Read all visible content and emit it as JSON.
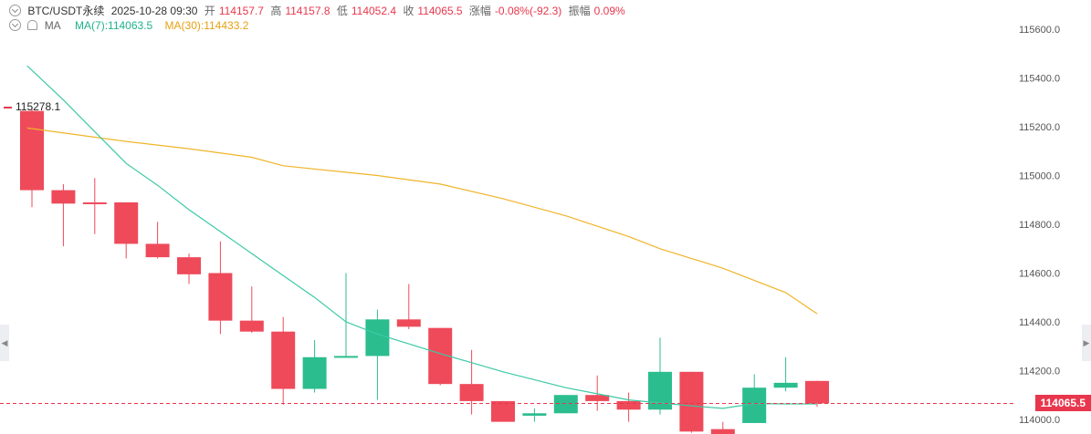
{
  "header": {
    "symbol": "BTC/USDT永续",
    "datetime": "2025-10-28 09:30",
    "open_label": "开",
    "open": "114157.7",
    "high_label": "高",
    "high": "114157.8",
    "low_label": "低",
    "low": "114052.4",
    "close_label": "收",
    "close": "114065.5",
    "change_label": "涨幅",
    "change": "-0.08%(-92.3)",
    "amplitude_label": "振幅",
    "amplitude": "0.09%"
  },
  "indicator": {
    "name": "MA",
    "ma7": "MA(7):114063.5",
    "ma30": "MA(30):114433.2"
  },
  "colors": {
    "up": "#2bbd8e",
    "down": "#ee4a5a",
    "ma7": "#3cc9a5",
    "ma30": "#f0b429"
  },
  "max_label": "115278.1",
  "last_price_label": "114065.5",
  "chart_data": {
    "type": "candlestick",
    "ylim": [
      113940,
      115720
    ],
    "yticks": [
      114000,
      114200,
      114400,
      114600,
      114800,
      115000,
      115200,
      115400,
      115600
    ],
    "ytick_labels": [
      "114000.0",
      "114200.0",
      "114400.0",
      "114600.0",
      "114800.0",
      "115000.0",
      "115200.0",
      "115400.0",
      "115600.0"
    ],
    "last_price": 114065.5,
    "candles": [
      {
        "o": 115265,
        "h": 115278.1,
        "l": 114870,
        "c": 114940
      },
      {
        "o": 114940,
        "h": 114965,
        "l": 114710,
        "c": 114885
      },
      {
        "o": 114890,
        "h": 114990,
        "l": 114760,
        "c": 114885
      },
      {
        "o": 114890,
        "h": 114890,
        "l": 114660,
        "c": 114720
      },
      {
        "o": 114720,
        "h": 114810,
        "l": 114660,
        "c": 114665
      },
      {
        "o": 114665,
        "h": 114680,
        "l": 114555,
        "c": 114595
      },
      {
        "o": 114600,
        "h": 114730,
        "l": 114350,
        "c": 114405
      },
      {
        "o": 114405,
        "h": 114545,
        "l": 114355,
        "c": 114360
      },
      {
        "o": 114360,
        "h": 114420,
        "l": 114060,
        "c": 114125
      },
      {
        "o": 114125,
        "h": 114325,
        "l": 114110,
        "c": 114255
      },
      {
        "o": 114255,
        "h": 114600,
        "l": 114255,
        "c": 114260
      },
      {
        "o": 114260,
        "h": 114450,
        "l": 114080,
        "c": 114410
      },
      {
        "o": 114410,
        "h": 114555,
        "l": 114370,
        "c": 114380
      },
      {
        "o": 114375,
        "h": 114375,
        "l": 114140,
        "c": 114145
      },
      {
        "o": 114145,
        "h": 114285,
        "l": 114020,
        "c": 114075
      },
      {
        "o": 114075,
        "h": 114075,
        "l": 113990,
        "c": 113990
      },
      {
        "o": 114015,
        "h": 114045,
        "l": 113990,
        "c": 114025
      },
      {
        "o": 114025,
        "h": 114100,
        "l": 114025,
        "c": 114100
      },
      {
        "o": 114100,
        "h": 114180,
        "l": 114035,
        "c": 114075
      },
      {
        "o": 114075,
        "h": 114110,
        "l": 113990,
        "c": 114040
      },
      {
        "o": 114040,
        "h": 114335,
        "l": 114020,
        "c": 114195
      },
      {
        "o": 114195,
        "h": 114195,
        "l": 113945,
        "c": 113950
      },
      {
        "o": 113960,
        "h": 113990,
        "l": 113930,
        "c": 113935
      },
      {
        "o": 113985,
        "h": 114185,
        "l": 113985,
        "c": 114130
      },
      {
        "o": 114130,
        "h": 114255,
        "l": 114115,
        "c": 114150
      },
      {
        "o": 114157.7,
        "h": 114157.8,
        "l": 114052.4,
        "c": 114065.5
      }
    ],
    "ma7": [
      {
        "i": -0.15,
        "v": 115450
      },
      {
        "i": 1,
        "v": 115310
      },
      {
        "i": 3,
        "v": 115050
      },
      {
        "i": 4,
        "v": 114960
      },
      {
        "i": 5,
        "v": 114860
      },
      {
        "i": 6,
        "v": 114770
      },
      {
        "i": 7,
        "v": 114680
      },
      {
        "i": 8,
        "v": 114590
      },
      {
        "i": 9,
        "v": 114500
      },
      {
        "i": 10,
        "v": 114400
      },
      {
        "i": 11,
        "v": 114350
      },
      {
        "i": 13,
        "v": 114270
      },
      {
        "i": 15,
        "v": 114195
      },
      {
        "i": 17,
        "v": 114130
      },
      {
        "i": 19,
        "v": 114080
      },
      {
        "i": 21,
        "v": 114055
      },
      {
        "i": 22,
        "v": 114045
      },
      {
        "i": 23,
        "v": 114065
      },
      {
        "i": 24,
        "v": 114063.5
      },
      {
        "i": 25,
        "v": 114063.5
      }
    ],
    "ma30": [
      {
        "i": -0.15,
        "v": 115195
      },
      {
        "i": 3,
        "v": 115140
      },
      {
        "i": 5,
        "v": 115110
      },
      {
        "i": 7,
        "v": 115075
      },
      {
        "i": 8,
        "v": 115040
      },
      {
        "i": 11,
        "v": 115000
      },
      {
        "i": 13,
        "v": 114965
      },
      {
        "i": 15,
        "v": 114905
      },
      {
        "i": 17,
        "v": 114835
      },
      {
        "i": 19,
        "v": 114750
      },
      {
        "i": 20,
        "v": 114700
      },
      {
        "i": 22,
        "v": 114620
      },
      {
        "i": 24,
        "v": 114520
      },
      {
        "i": 25,
        "v": 114433.2
      }
    ]
  }
}
